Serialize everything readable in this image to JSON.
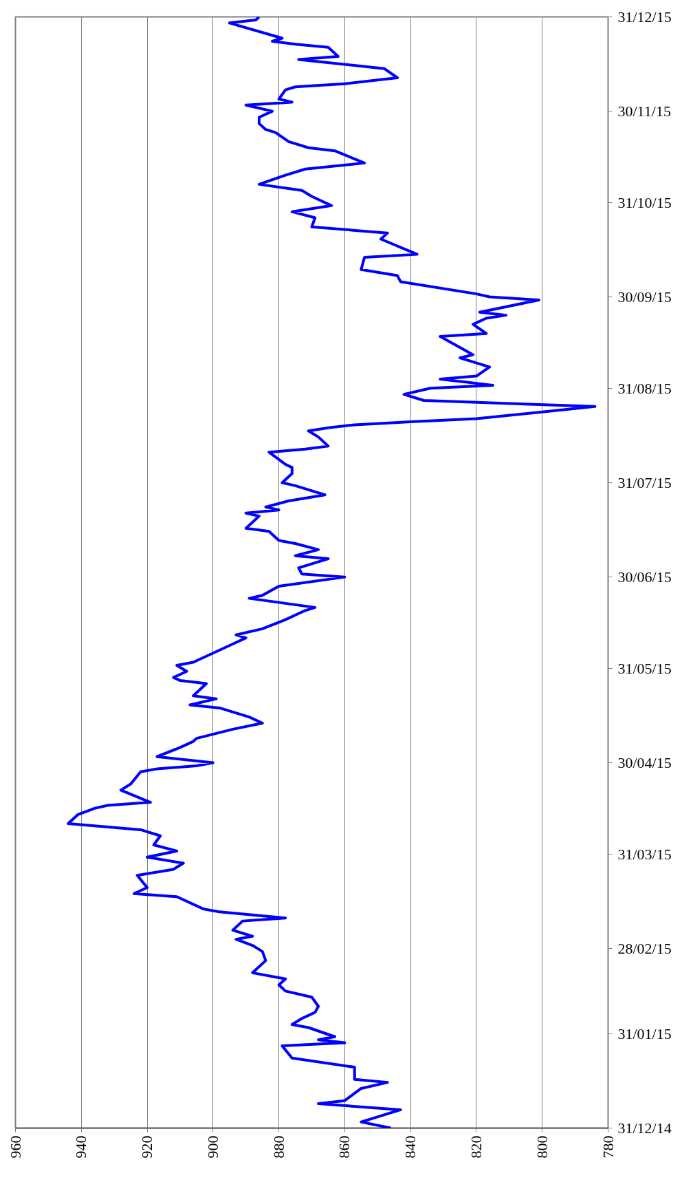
{
  "chart_data": {
    "type": "line",
    "orientation": "horizontal",
    "line_style": "solid",
    "marker": "none",
    "grid": "x",
    "x": [
      "2014-12-31",
      "2015-01-02",
      "2015-01-06",
      "2015-01-08",
      "2015-01-09",
      "2015-01-13",
      "2015-01-15",
      "2015-01-16",
      "2015-01-20",
      "2015-01-23",
      "2015-01-27",
      "2015-01-28",
      "2015-01-29",
      "2015-01-30",
      "2015-02-02",
      "2015-02-03",
      "2015-02-05",
      "2015-02-07",
      "2015-02-09",
      "2015-02-12",
      "2015-02-14",
      "2015-02-16",
      "2015-02-18",
      "2015-02-20",
      "2015-02-24",
      "2015-02-27",
      "2015-03-01",
      "2015-03-03",
      "2015-03-04",
      "2015-03-06",
      "2015-03-09",
      "2015-03-10",
      "2015-03-12",
      "2015-03-13",
      "2015-03-17",
      "2015-03-18",
      "2015-03-20",
      "2015-03-24",
      "2015-03-26",
      "2015-03-28",
      "2015-03-30",
      "2015-04-01",
      "2015-04-03",
      "2015-04-06",
      "2015-04-08",
      "2015-04-10",
      "2015-04-13",
      "2015-04-15",
      "2015-04-16",
      "2015-04-17",
      "2015-04-21",
      "2015-04-23",
      "2015-04-27",
      "2015-04-28",
      "2015-04-29",
      "2015-04-30",
      "2015-05-02",
      "2015-05-05",
      "2015-05-07",
      "2015-05-08",
      "2015-05-11",
      "2015-05-13",
      "2015-05-15",
      "2015-05-18",
      "2015-05-19",
      "2015-05-21",
      "2015-05-22",
      "2015-05-26",
      "2015-05-27",
      "2015-05-28",
      "2015-05-30",
      "2015-06-01",
      "2015-06-02",
      "2015-06-05",
      "2015-06-08",
      "2015-06-10",
      "2015-06-11",
      "2015-06-13",
      "2015-06-16",
      "2015-06-19",
      "2015-06-20",
      "2015-06-23",
      "2015-06-24",
      "2015-06-27",
      "2015-06-30",
      "2015-07-01",
      "2015-07-03",
      "2015-07-06",
      "2015-07-07",
      "2015-07-09",
      "2015-07-11",
      "2015-07-12",
      "2015-07-15",
      "2015-07-16",
      "2015-07-20",
      "2015-07-21",
      "2015-07-22",
      "2015-07-23",
      "2015-07-25",
      "2015-07-27",
      "2015-07-29",
      "2015-07-30",
      "2015-07-31",
      "2015-08-03",
      "2015-08-05",
      "2015-08-06",
      "2015-08-10",
      "2015-08-11",
      "2015-08-12",
      "2015-08-15",
      "2015-08-17",
      "2015-08-18",
      "2015-08-19",
      "2015-08-20",
      "2015-08-21",
      "2015-08-25",
      "2015-08-27",
      "2015-08-29",
      "2015-08-31",
      "2015-09-01",
      "2015-09-03",
      "2015-09-04",
      "2015-09-07",
      "2015-09-10",
      "2015-09-11",
      "2015-09-17",
      "2015-09-18",
      "2015-09-21",
      "2015-09-23",
      "2015-09-24",
      "2015-09-25",
      "2015-09-29",
      "2015-09-30",
      "2015-10-01",
      "2015-10-05",
      "2015-10-07",
      "2015-10-09",
      "2015-10-13",
      "2015-10-14",
      "2015-10-19",
      "2015-10-21",
      "2015-10-23",
      "2015-10-26",
      "2015-10-28",
      "2015-10-30",
      "2015-11-02",
      "2015-11-04",
      "2015-11-06",
      "2015-11-09",
      "2015-11-11",
      "2015-11-13",
      "2015-11-17",
      "2015-11-18",
      "2015-11-20",
      "2015-11-23",
      "2015-11-24",
      "2015-11-26",
      "2015-11-28",
      "2015-11-30",
      "2015-12-02",
      "2015-12-03",
      "2015-12-04",
      "2015-12-07",
      "2015-12-08",
      "2015-12-09",
      "2015-12-11",
      "2015-12-14",
      "2015-12-17",
      "2015-12-18",
      "2015-12-21",
      "2015-12-22",
      "2015-12-23",
      "2015-12-24",
      "2015-12-29",
      "2015-12-30",
      "2015-12-31"
    ],
    "series": [
      {
        "color": "#0000ff",
        "values": [
          846,
          855,
          843,
          868,
          860,
          855,
          847,
          857,
          857,
          876,
          879,
          860,
          868,
          863,
          871,
          876,
          873,
          869,
          868,
          870,
          878,
          880,
          878,
          888,
          884,
          885,
          888,
          893,
          888,
          894,
          891,
          878,
          898,
          903,
          911,
          924,
          920,
          923,
          912,
          909,
          920,
          911,
          918,
          916,
          922,
          944,
          941,
          936,
          932,
          919,
          928,
          925,
          922,
          917,
          905,
          900,
          917,
          910,
          906,
          905,
          894,
          885,
          889,
          898,
          907,
          899,
          906,
          902,
          910,
          912,
          908,
          911,
          906,
          900,
          894,
          890,
          893,
          885,
          878,
          872,
          869,
          889,
          885,
          880,
          860,
          873,
          874,
          865,
          875,
          868,
          875,
          880,
          883,
          890,
          886,
          890,
          880,
          884,
          877,
          866,
          872,
          875,
          879,
          876,
          876,
          878,
          883,
          872,
          865,
          868,
          871,
          865,
          857,
          840,
          820,
          784,
          836,
          842,
          834,
          815,
          831,
          820,
          816,
          825,
          821,
          831,
          817,
          821,
          817,
          811,
          819,
          801,
          816,
          820,
          843,
          844,
          855,
          854,
          838,
          849,
          847,
          870,
          869,
          876,
          864,
          870,
          873,
          886,
          878,
          872,
          854,
          863,
          871,
          877,
          881,
          884,
          886,
          886,
          882,
          890,
          876,
          880,
          878,
          875,
          860,
          844,
          848,
          874,
          862,
          865,
          875,
          882,
          879,
          895,
          887,
          886
        ]
      }
    ],
    "xlim": [
      960,
      780
    ],
    "ylim": [
      "2014-12-31",
      "2015-12-31"
    ],
    "xticks": [
      960,
      940,
      920,
      900,
      880,
      860,
      840,
      820,
      800,
      780
    ],
    "yticks": [
      {
        "value": "2014-12-31",
        "label": "31/12/14"
      },
      {
        "value": "2015-01-31",
        "label": "31/01/15"
      },
      {
        "value": "2015-02-28",
        "label": "28/02/15"
      },
      {
        "value": "2015-03-31",
        "label": "31/03/15"
      },
      {
        "value": "2015-04-30",
        "label": "30/04/15"
      },
      {
        "value": "2015-05-31",
        "label": "31/05/15"
      },
      {
        "value": "2015-06-30",
        "label": "30/06/15"
      },
      {
        "value": "2015-07-31",
        "label": "31/07/15"
      },
      {
        "value": "2015-08-31",
        "label": "31/08/15"
      },
      {
        "value": "2015-09-30",
        "label": "30/09/15"
      },
      {
        "value": "2015-10-31",
        "label": "31/10/15"
      },
      {
        "value": "2015-11-30",
        "label": "30/11/15"
      },
      {
        "value": "2015-12-31",
        "label": "31/12/15"
      }
    ]
  }
}
